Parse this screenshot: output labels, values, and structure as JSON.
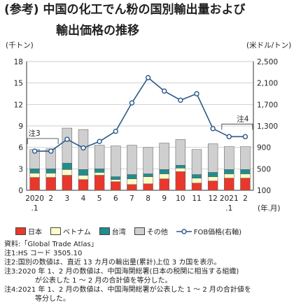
{
  "title": {
    "tag": "(参考)",
    "line1": "中国の化工でん粉の国別輸出量および",
    "line2": "輸出価格の推移"
  },
  "legend": {
    "japan": "日本",
    "vietnam": "ベトナム",
    "taiwan": "台湾",
    "other": "その他",
    "fob": "FOB価格(右軸)"
  },
  "notes": [
    "資料:「Global Trade Atlas」",
    "注1:HS コード 3505.10",
    "注2:国別の数値は、直近 13 カ月の輸出量(累計)上位 3 カ国を表示。",
    "注3:2020 年 1、2 月の数値は、中国海関総署(日本の税関に相当する組織)",
    "が公表した 1 ～ 2 月の合計値を等分した。",
    "注4:2021 年 1、2 月の数値は、中国海関総署が公表した 1 ～ 2 月の合計値を",
    "等分した。"
  ],
  "chart_data": {
    "type": "bar",
    "stacked": true,
    "left_unit": "(千トン)",
    "right_unit": "(米ドル/トン)",
    "x_unit": "(年.月)",
    "categories": [
      "2020\n.1",
      "2",
      "3",
      "4",
      "5",
      "6",
      "7",
      "8",
      "9",
      "10",
      "11",
      "12",
      "2021\n.1",
      "2"
    ],
    "tick_labels_top": [
      "2020",
      "2",
      "3",
      "4",
      "5",
      "6",
      "7",
      "8",
      "9",
      "10",
      "11",
      "12",
      "2021",
      "2"
    ],
    "tick_labels_bottom": [
      ".1",
      "",
      "",
      "",
      "",
      "",
      "",
      "",
      "",
      "",
      "",
      "",
      ".1",
      ""
    ],
    "ylim_left": [
      0,
      18
    ],
    "yticks_left": [
      0,
      3,
      6,
      9,
      12,
      15,
      18
    ],
    "ylim_right": [
      100,
      2500
    ],
    "yticks_right": [
      100,
      500,
      900,
      1300,
      1700,
      2100,
      2500
    ],
    "series": [
      {
        "name": "日本",
        "color": "#e8382c",
        "values": [
          1.8,
          1.8,
          2.1,
          1.5,
          2.1,
          1.2,
          0.8,
          0.9,
          1.6,
          2.6,
          1.0,
          1.3,
          1.7,
          1.7
        ]
      },
      {
        "name": "ベトナム",
        "color": "#fffbc8",
        "values": [
          0.6,
          0.6,
          0.8,
          0.6,
          0.4,
          0.3,
          0.8,
          1.0,
          0.7,
          0.5,
          0.7,
          0.6,
          0.6,
          0.6
        ]
      },
      {
        "name": "台湾",
        "color": "#1f8e8e",
        "values": [
          0.6,
          0.6,
          0.9,
          0.8,
          0.5,
          0.4,
          0.6,
          0.4,
          0.6,
          0.4,
          0.5,
          0.6,
          0.6,
          0.6
        ]
      },
      {
        "name": "その他",
        "color": "#cfcfcf",
        "values": [
          2.7,
          2.8,
          4.9,
          5.6,
          3.3,
          4.3,
          4.1,
          3.7,
          3.7,
          3.6,
          3.5,
          4.0,
          3.2,
          3.2
        ]
      }
    ],
    "line": {
      "name": "FOB価格(右軸)",
      "color": "#2a5a8a",
      "axis": "right",
      "values": [
        830,
        830,
        1050,
        890,
        1010,
        1200,
        1730,
        2200,
        1950,
        1780,
        1900,
        1250,
        1100,
        1100
      ]
    },
    "annotations": [
      {
        "label": "注3",
        "covers": [
          0,
          1
        ]
      },
      {
        "label": "注4",
        "covers": [
          12,
          13
        ]
      }
    ]
  }
}
